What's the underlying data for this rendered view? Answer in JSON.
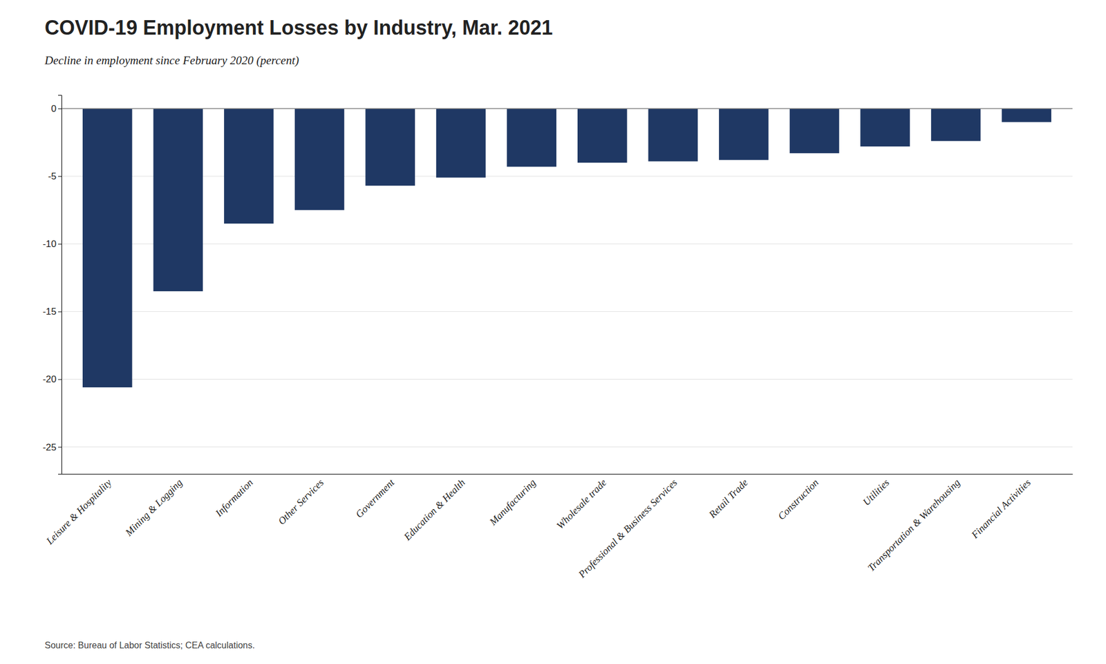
{
  "chart_data": {
    "type": "bar",
    "title": "COVID-19 Employment Losses by Industry, Mar. 2021",
    "subtitle": "Decline in employment since February 2020 (percent)",
    "source": "Source: Bureau of Labor Statistics; CEA calculations.",
    "categories": [
      "Leisure & Hospitality",
      "Mining & Logging",
      "Information",
      "Other Services",
      "Government",
      "Education & Health",
      "Manufacturing",
      "Wholesale trade",
      "Professional & Business Services",
      "Retail Trade",
      "Construction",
      "Utilities",
      "Transportation & Warehousing",
      "Financial Activities"
    ],
    "values": [
      -20.6,
      -13.5,
      -8.5,
      -7.5,
      -5.7,
      -5.1,
      -4.3,
      -4.0,
      -3.9,
      -3.8,
      -3.3,
      -2.8,
      -2.4,
      -1.0
    ],
    "color": "#1f3864",
    "ylim": [
      -27,
      1.0
    ],
    "yticks": [
      0,
      -5,
      -10,
      -15,
      -20,
      -25
    ],
    "grid": true
  }
}
